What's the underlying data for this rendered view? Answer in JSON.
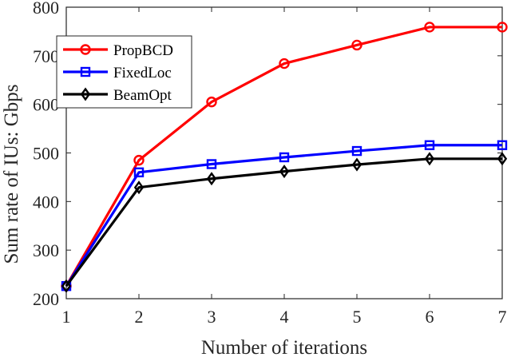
{
  "chart_data": {
    "type": "line",
    "xlabel": "Number of iterations",
    "ylabel": "Sum rate of IUs: Gbps",
    "x": [
      1,
      2,
      3,
      4,
      5,
      6,
      7
    ],
    "xlim": [
      1,
      7
    ],
    "ylim": [
      200,
      800
    ],
    "xticks": [
      "1",
      "2",
      "3",
      "4",
      "5",
      "6",
      "7"
    ],
    "yticks": [
      "200",
      "300",
      "400",
      "500",
      "600",
      "700",
      "800"
    ],
    "grid": false,
    "legend_position": "top-left",
    "series": [
      {
        "name": "PropBCD",
        "color": "#ff0000",
        "marker": "circle",
        "values": [
          226,
          485,
          605,
          684,
          722,
          759,
          759
        ]
      },
      {
        "name": "FixedLoc",
        "color": "#0000ff",
        "marker": "square",
        "values": [
          226,
          460,
          477,
          491,
          504,
          516,
          516
        ]
      },
      {
        "name": "BeamOpt",
        "color": "#000000",
        "marker": "diamond",
        "values": [
          226,
          429,
          447,
          462,
          476,
          488,
          488
        ]
      }
    ]
  }
}
